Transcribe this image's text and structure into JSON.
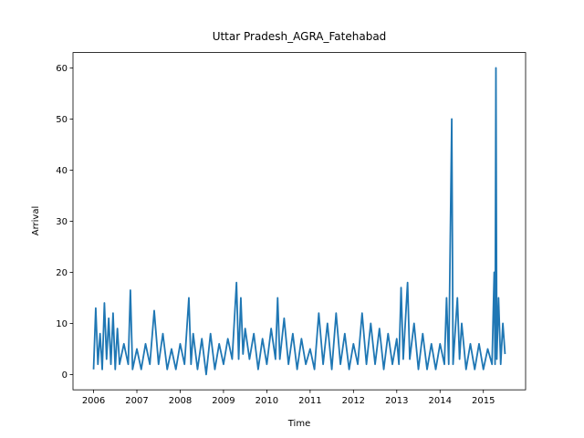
{
  "chart_data": {
    "type": "line",
    "title": "Uttar Pradesh_AGRA_Fatehabad",
    "x_label": "Time",
    "y_label": "Arrival",
    "x": [
      2006.0,
      2006.05,
      2006.1,
      2006.15,
      2006.2,
      2006.25,
      2006.3,
      2006.35,
      2006.4,
      2006.45,
      2006.5,
      2006.55,
      2006.6,
      2006.7,
      2006.8,
      2006.85,
      2006.9,
      2007.0,
      2007.1,
      2007.2,
      2007.3,
      2007.4,
      2007.5,
      2007.6,
      2007.7,
      2007.8,
      2007.9,
      2008.0,
      2008.1,
      2008.2,
      2008.25,
      2008.3,
      2008.4,
      2008.5,
      2008.6,
      2008.7,
      2008.8,
      2008.9,
      2009.0,
      2009.1,
      2009.2,
      2009.3,
      2009.35,
      2009.4,
      2009.45,
      2009.5,
      2009.6,
      2009.7,
      2009.8,
      2009.9,
      2010.0,
      2010.1,
      2010.2,
      2010.25,
      2010.3,
      2010.4,
      2010.5,
      2010.6,
      2010.7,
      2010.8,
      2010.9,
      2011.0,
      2011.1,
      2011.2,
      2011.3,
      2011.4,
      2011.5,
      2011.6,
      2011.7,
      2011.8,
      2011.9,
      2012.0,
      2012.1,
      2012.2,
      2012.3,
      2012.4,
      2012.5,
      2012.6,
      2012.7,
      2012.8,
      2012.9,
      2013.0,
      2013.05,
      2013.1,
      2013.15,
      2013.25,
      2013.3,
      2013.4,
      2013.5,
      2013.6,
      2013.7,
      2013.8,
      2013.9,
      2014.0,
      2014.1,
      2014.15,
      2014.2,
      2014.27,
      2014.3,
      2014.4,
      2014.45,
      2014.5,
      2014.6,
      2014.7,
      2014.8,
      2014.9,
      2015.0,
      2015.1,
      2015.2,
      2015.25,
      2015.27,
      2015.29,
      2015.31,
      2015.35,
      2015.4,
      2015.45,
      2015.5
    ],
    "series": [
      {
        "color": "#1f77b4",
        "values": [
          1,
          13,
          2,
          8,
          1,
          14,
          3,
          11,
          2,
          12,
          1,
          9,
          2,
          6,
          2,
          16.5,
          1,
          5,
          1,
          6,
          2,
          12.5,
          2,
          8,
          1,
          5,
          1,
          6,
          2,
          15,
          2,
          8,
          1,
          7,
          0,
          8,
          1,
          6,
          2,
          7,
          3,
          18,
          3,
          15,
          4,
          9,
          3,
          8,
          1,
          7,
          2,
          9,
          3,
          15,
          3,
          11,
          2,
          8,
          1,
          7,
          2,
          5,
          1,
          12,
          2,
          10,
          1,
          12,
          2,
          8,
          1,
          6,
          2,
          12,
          2,
          10,
          2,
          9,
          1,
          8,
          2,
          7,
          2,
          17,
          3,
          18,
          3,
          10,
          1,
          8,
          1,
          6,
          1,
          6,
          2,
          15,
          2,
          50,
          2,
          15,
          3,
          10,
          1,
          6,
          1,
          6,
          1,
          5,
          2,
          20,
          2,
          60,
          3,
          15,
          2,
          10,
          4
        ]
      }
    ],
    "xlim": [
      2005.525,
      2015.975
    ],
    "ylim": [
      -3,
      63
    ],
    "xticks": [
      2006,
      2007,
      2008,
      2009,
      2010,
      2011,
      2012,
      2013,
      2014,
      2015
    ],
    "yticks": [
      0,
      10,
      20,
      30,
      40,
      50,
      60
    ],
    "grid": false
  }
}
